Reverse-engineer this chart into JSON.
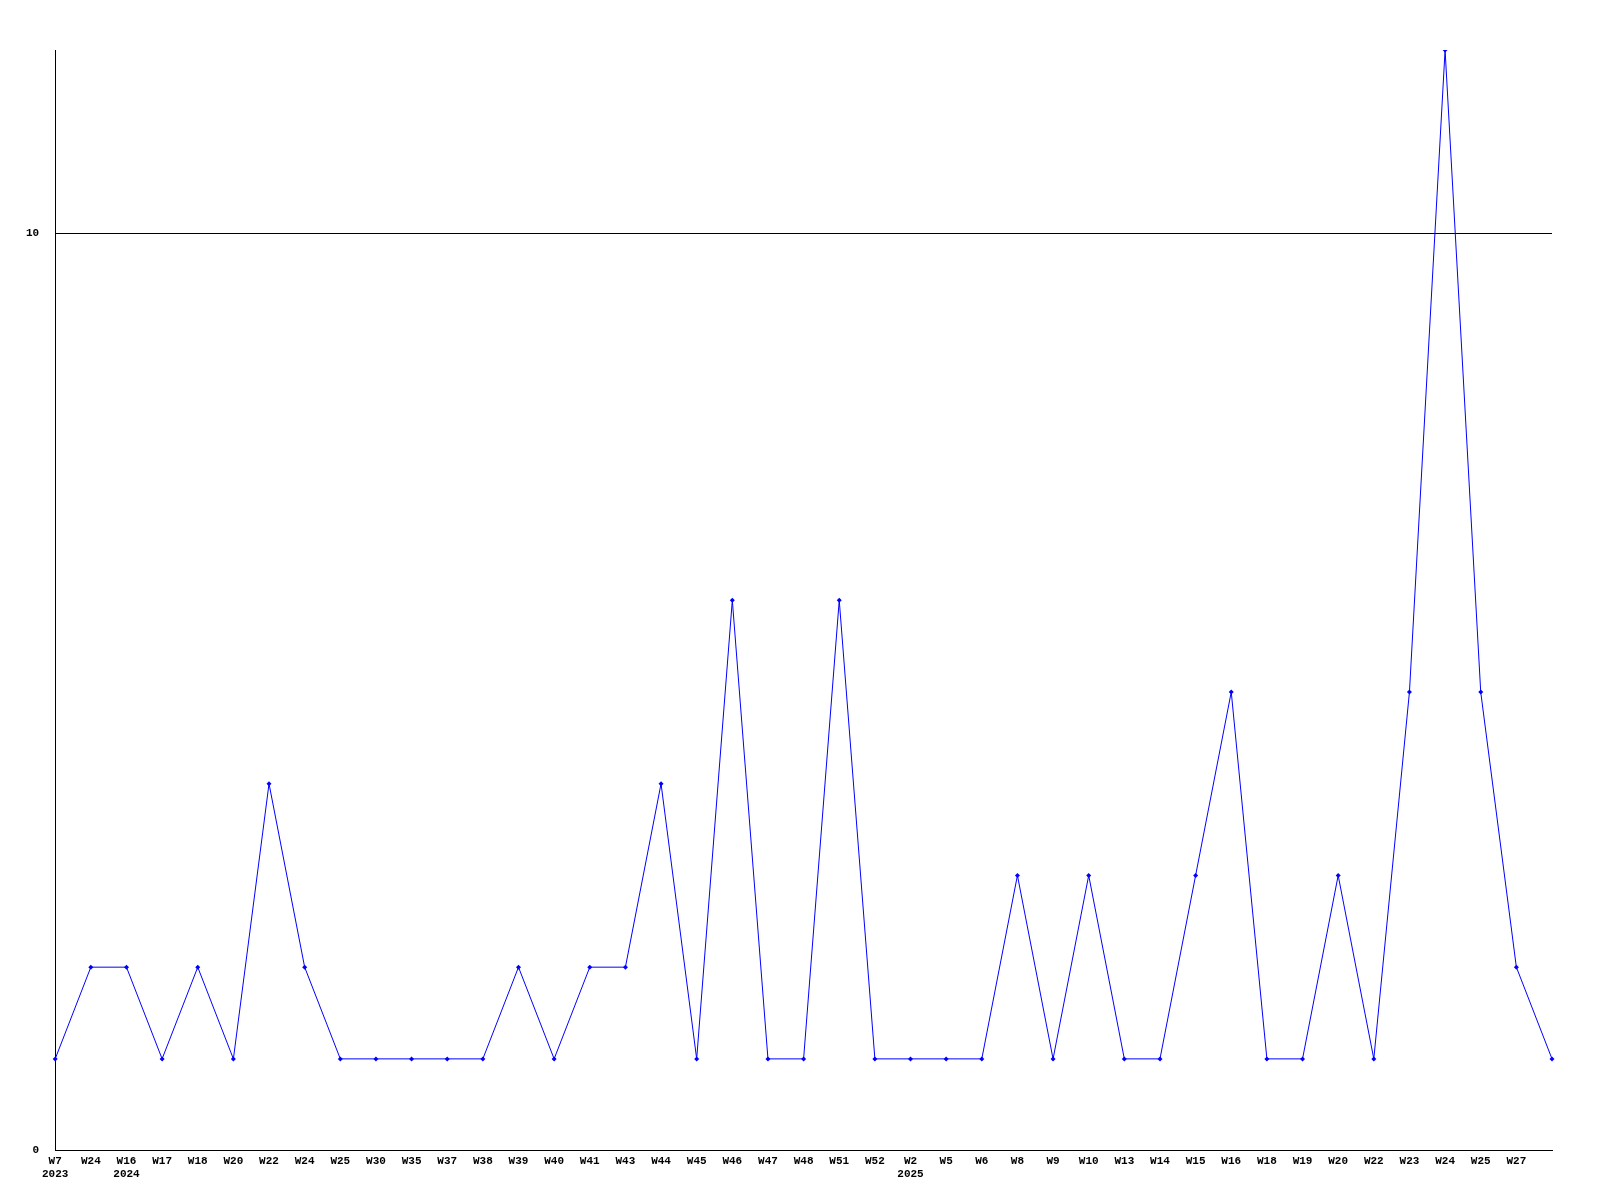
{
  "chart_data": {
    "type": "line",
    "categories": [
      "W7\n2023",
      "W24",
      "W16\n2024",
      "W17",
      "W18",
      "W20",
      "W22",
      "W24",
      "W25",
      "W30",
      "W35",
      "W37",
      "W38",
      "W39",
      "W40",
      "W41",
      "W43",
      "W44",
      "W45",
      "W46",
      "W47",
      "W48",
      "W51",
      "W52",
      "W2\n2025",
      "W5",
      "W6",
      "W8",
      "W9",
      "W10",
      "W13",
      "W14",
      "W15",
      "W16",
      "W18",
      "W19",
      "W20",
      "W22",
      "W23",
      "W24",
      "W25",
      "W27",
      null
    ],
    "series": [
      {
        "color": "#0000ff",
        "values": [
          1,
          2,
          2,
          1,
          2,
          1,
          4,
          2,
          1,
          1,
          1,
          1,
          1,
          2,
          1,
          2,
          2,
          4,
          1,
          6,
          1,
          1,
          6,
          1,
          1,
          1,
          1,
          3,
          1,
          3,
          1,
          1,
          3,
          5,
          1,
          1,
          3,
          1,
          5,
          12,
          5,
          2,
          1
        ]
      }
    ],
    "ylim": [
      0,
      12
    ],
    "yticks": [
      0,
      10
    ],
    "grid": "y",
    "legend": false,
    "marker": "diamond",
    "line_style": "solid"
  }
}
